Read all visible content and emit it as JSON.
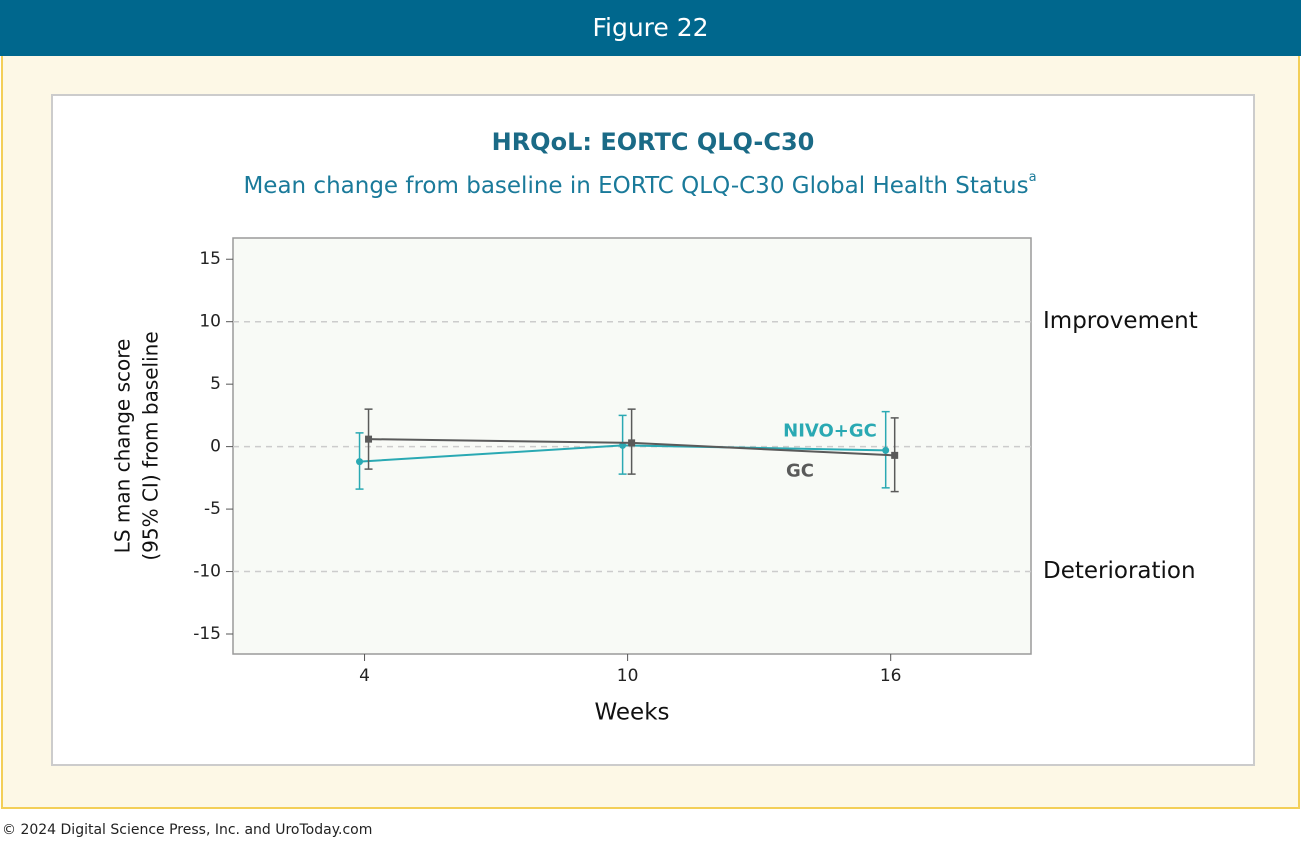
{
  "header": {
    "title": "Figure 22"
  },
  "footer": {
    "text": "© 2024 Digital Science Press, Inc. and UroToday.com"
  },
  "chart_data": {
    "type": "line",
    "title": "HRQoL: EORTC QLQ-C30",
    "subtitle": "Mean change from baseline in EORTC QLQ-C30 Global Health Status",
    "subtitle_superscript": "a",
    "xlabel": "Weeks",
    "ylabel": [
      "LS man change score",
      "(95% CI) from baseline"
    ],
    "x": [
      4,
      10,
      16
    ],
    "xlim": [
      1,
      19.2
    ],
    "xticks": [
      4,
      10,
      16
    ],
    "ylim": [
      -16.6,
      16.7
    ],
    "yticks": [
      -15,
      -10,
      -5,
      0,
      5,
      10,
      15
    ],
    "reference_lines": [
      10,
      0,
      -10
    ],
    "annotations": [
      {
        "text": "Improvement",
        "y": 10
      },
      {
        "text": "Deterioration",
        "y": -10
      }
    ],
    "series": [
      {
        "name": "NIVO+GC",
        "color": "#2aa9b3",
        "values": [
          -1.2,
          0.1,
          -0.3
        ],
        "lower": [
          -3.4,
          -2.2,
          -3.3
        ],
        "upper": [
          1.1,
          2.5,
          2.8
        ]
      },
      {
        "name": "GC",
        "color": "#5a5a5a",
        "values": [
          0.6,
          0.3,
          -0.7
        ],
        "lower": [
          -1.8,
          -2.2,
          -3.6
        ],
        "upper": [
          3.0,
          3.0,
          2.3
        ]
      }
    ]
  }
}
